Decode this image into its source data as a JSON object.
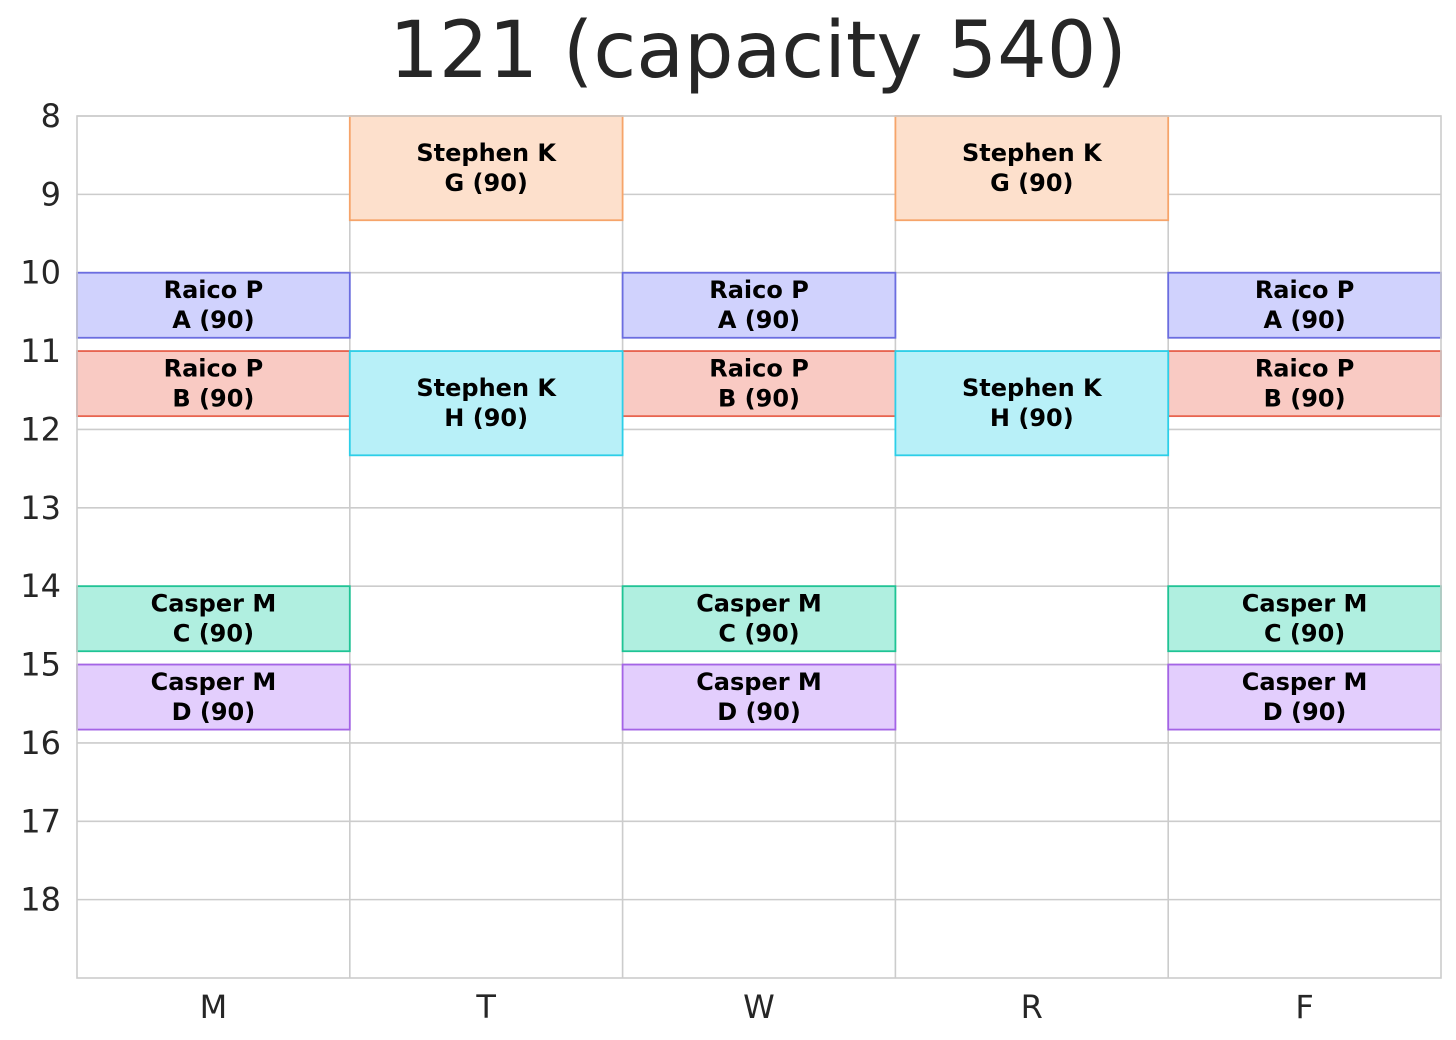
{
  "chart_data": {
    "type": "table",
    "title": "121 (capacity 540)",
    "days": [
      "M",
      "T",
      "W",
      "R",
      "F"
    ],
    "hour_ticks": [
      8,
      9,
      10,
      11,
      12,
      13,
      14,
      15,
      16,
      17,
      18
    ],
    "ylim": [
      8,
      19
    ],
    "grid": true,
    "blocks": [
      {
        "instructor": "Raico P",
        "section": "A (90)",
        "days": [
          "M",
          "W",
          "F"
        ],
        "start": 10,
        "end": 10.83,
        "color": "#d0d2fd",
        "border": "#6b6de0"
      },
      {
        "instructor": "Raico P",
        "section": "B (90)",
        "days": [
          "M",
          "W",
          "F"
        ],
        "start": 11,
        "end": 11.83,
        "color": "#f9cac3",
        "border": "#e86450"
      },
      {
        "instructor": "Casper M",
        "section": "C (90)",
        "days": [
          "M",
          "W",
          "F"
        ],
        "start": 14,
        "end": 14.83,
        "color": "#b0efe0",
        "border": "#1fc495"
      },
      {
        "instructor": "Casper M",
        "section": "D (90)",
        "days": [
          "M",
          "W",
          "F"
        ],
        "start": 15,
        "end": 15.83,
        "color": "#e3cefd",
        "border": "#a464e6"
      },
      {
        "instructor": "Stephen K",
        "section": "G (90)",
        "days": [
          "T",
          "R"
        ],
        "start": 8,
        "end": 9.33,
        "color": "#fde0cc",
        "border": "#f6a46a"
      },
      {
        "instructor": "Stephen K",
        "section": "H (90)",
        "days": [
          "T",
          "R"
        ],
        "start": 11,
        "end": 12.33,
        "color": "#b8f0f8",
        "border": "#2ccfe8"
      }
    ]
  }
}
